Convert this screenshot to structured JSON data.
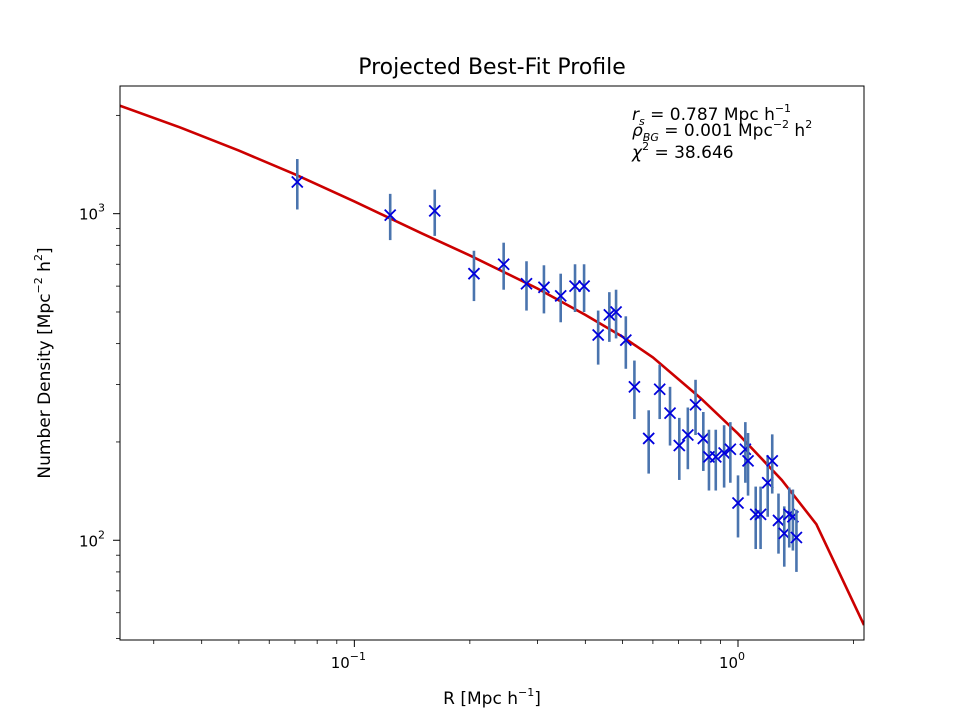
{
  "chart_data": {
    "type": "scatter",
    "title": "Projected Best-Fit Profile",
    "xlabel": {
      "base": "R [Mpc h",
      "sup": "−1",
      "tail": "]"
    },
    "ylabel": {
      "base": "Number Density [Mpc",
      "sup1": "−2",
      "mid": " h",
      "sup2": "2",
      "tail": "]"
    },
    "xscale": "log",
    "yscale": "log",
    "xlim": [
      0.0245,
      2.13
    ],
    "ylim": [
      49.5,
      2460
    ],
    "x_major_ticks": [
      {
        "value": 0.1,
        "base": "10",
        "exp": "−1"
      },
      {
        "value": 1,
        "base": "10",
        "exp": "0"
      }
    ],
    "y_major_ticks": [
      {
        "value": 100,
        "base": "10",
        "exp": "2"
      },
      {
        "value": 1000,
        "base": "10",
        "exp": "3"
      }
    ],
    "annotations": [
      {
        "sym": "r",
        "sub": "s",
        "text": " =  0.787 Mpc h",
        "sup": "−1"
      },
      {
        "sym": "ρ",
        "sub": "BG",
        "text": " =  0.001 Mpc",
        "sup": "−2",
        "tail": " h",
        "sup2": "2"
      },
      {
        "sym": "χ",
        "sup_sym": "2",
        "text": " =  38.646"
      }
    ],
    "fit_curve": {
      "color": "#cc0000",
      "x": [
        0.0245,
        0.035,
        0.05,
        0.07,
        0.1,
        0.15,
        0.2,
        0.3,
        0.4,
        0.5,
        0.6,
        0.8,
        1.0,
        1.3,
        1.6,
        2.13
      ],
      "y": [
        2140,
        1840,
        1560,
        1320,
        1090,
        870,
        745,
        590,
        490,
        420,
        363,
        272,
        212,
        153,
        112,
        55
      ]
    },
    "series": [
      {
        "marker": "x",
        "color": "#0000dd",
        "errorbar_color": "#4a74ae",
        "x": [
          0.071,
          0.124,
          0.162,
          0.205,
          0.245,
          0.281,
          0.312,
          0.345,
          0.376,
          0.397,
          0.432,
          0.462,
          0.481,
          0.51,
          0.537,
          0.585,
          0.625,
          0.665,
          0.703,
          0.74,
          0.775,
          0.812,
          0.84,
          0.875,
          0.92,
          0.955,
          1.0,
          1.045,
          1.062,
          1.112,
          1.145,
          1.195,
          1.228,
          1.275,
          1.32,
          1.36,
          1.39,
          1.42
        ],
        "y": [
          1250,
          990,
          1020,
          655,
          700,
          610,
          595,
          560,
          600,
          600,
          425,
          490,
          500,
          410,
          295,
          205,
          290,
          245,
          195,
          210,
          260,
          205,
          180,
          180,
          185,
          190,
          130,
          190,
          175,
          120,
          120,
          150,
          175,
          115,
          105,
          120,
          118,
          102
        ],
        "err": [
          220,
          160,
          165,
          115,
          115,
          105,
          100,
          95,
          100,
          100,
          80,
          85,
          85,
          75,
          60,
          45,
          55,
          50,
          42,
          45,
          50,
          42,
          38,
          38,
          40,
          40,
          28,
          40,
          38,
          26,
          26,
          32,
          36,
          24,
          22,
          25,
          25,
          22
        ]
      }
    ]
  }
}
